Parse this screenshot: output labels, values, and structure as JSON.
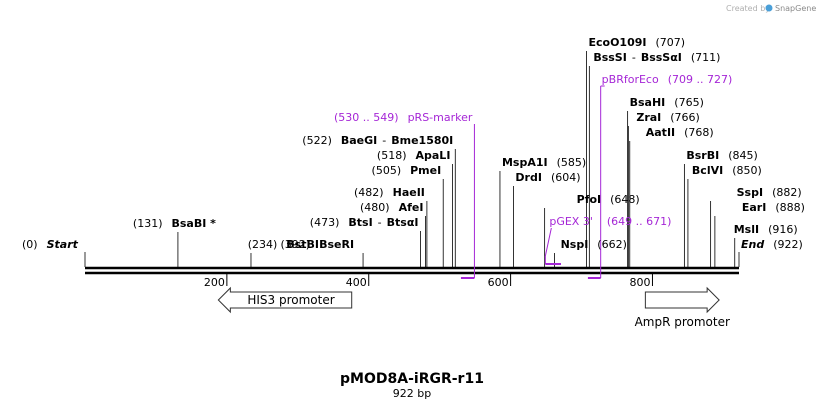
{
  "plasmid": {
    "name": "pMOD8A-iRGR-r11",
    "length_label": "922 bp",
    "length": 922
  },
  "credit": {
    "prefix": "Created by",
    "brand": "SnapGene"
  },
  "colors": {
    "primer": "#a526d6",
    "line": "#000000",
    "feature_fill": "#ffffff"
  },
  "ends": [
    {
      "name": "Start",
      "num": "(0)",
      "pos": 0
    },
    {
      "name": "End",
      "num": "(922)",
      "pos": 922
    }
  ],
  "sites": [
    {
      "name": "BsaBI *",
      "num": "(131)",
      "pos": 131
    },
    {
      "name": "BstBI",
      "num": "(234)",
      "pos": 234
    },
    {
      "name": "BseRI",
      "num": "(392)",
      "pos": 392
    },
    {
      "name": "BtsI",
      "alt": "BtsαI",
      "num": "(473)",
      "pos": 473
    },
    {
      "name": "AfeI",
      "num": "(480)",
      "pos": 480
    },
    {
      "name": "HaeII",
      "num": "(482)",
      "pos": 482
    },
    {
      "name": "PmeI",
      "num": "(505)",
      "pos": 505
    },
    {
      "name": "ApaLI",
      "num": "(518)",
      "pos": 518
    },
    {
      "name": "BaeGI",
      "alt": "Bme1580I",
      "num": "(522)",
      "pos": 522
    },
    {
      "name": "MspA1I",
      "num": "(585)",
      "pos": 585
    },
    {
      "name": "DrdI",
      "num": "(604)",
      "pos": 604
    },
    {
      "name": "PfoI",
      "num": "(648)",
      "pos": 648
    },
    {
      "name": "NspI",
      "num": "(662)",
      "pos": 662
    },
    {
      "name": "EcoO109I",
      "num": "(707)",
      "pos": 707
    },
    {
      "name": "BssSI",
      "alt": "BssSαI",
      "num": "(711)",
      "pos": 711
    },
    {
      "name": "BsaHI",
      "num": "(765)",
      "pos": 765
    },
    {
      "name": "ZraI",
      "num": "(766)",
      "pos": 766
    },
    {
      "name": "AatII",
      "num": "(768)",
      "pos": 768
    },
    {
      "name": "BsrBI",
      "num": "(845)",
      "pos": 845
    },
    {
      "name": "BclVI",
      "num": "(850)",
      "pos": 850
    },
    {
      "name": "SspI",
      "num": "(882)",
      "pos": 882
    },
    {
      "name": "EarI",
      "num": "(888)",
      "pos": 888
    },
    {
      "name": "MslI",
      "num": "(916)",
      "pos": 916
    }
  ],
  "primers": [
    {
      "name": "pRS-marker",
      "range": "(530 .. 549)",
      "start": 530,
      "end": 549,
      "strand": "reverse"
    },
    {
      "name": "pGEX 3'",
      "range": "(649 .. 671)",
      "start": 649,
      "end": 671,
      "strand": "forward"
    },
    {
      "name": "pBRforEco",
      "range": "(709 .. 727)",
      "start": 709,
      "end": 727,
      "strand": "reverse"
    }
  ],
  "ruler": {
    "labels": [
      "200",
      "400",
      "600",
      "800"
    ],
    "values": [
      200,
      400,
      600,
      800
    ]
  },
  "features": [
    {
      "name": "HIS3 promoter",
      "start": 188,
      "end": 376,
      "direction": "left"
    },
    {
      "name": "AmpR promoter",
      "start": 790,
      "end": 894,
      "direction": "right"
    }
  ]
}
